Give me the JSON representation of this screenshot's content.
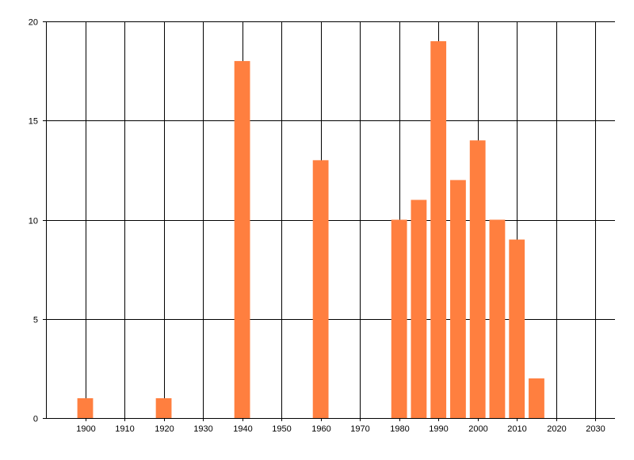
{
  "chart_data": {
    "type": "bar",
    "x": [
      1900,
      1920,
      1940,
      1960,
      1980,
      1985,
      1990,
      1995,
      2000,
      2005,
      2010,
      2015
    ],
    "values": [
      1,
      1,
      18,
      13,
      10,
      11,
      19,
      12,
      14,
      10,
      9,
      2
    ],
    "bar_width": 4,
    "title": "",
    "xlabel": "",
    "ylabel": "",
    "xlim": [
      1890,
      2035
    ],
    "ylim": [
      0,
      20
    ],
    "x_ticks": [
      1900,
      1910,
      1920,
      1930,
      1940,
      1950,
      1960,
      1970,
      1980,
      1990,
      2000,
      2010,
      2020,
      2030
    ],
    "y_ticks": [
      0,
      5,
      10,
      15,
      20
    ],
    "grid": true,
    "legend": "none",
    "colors": {
      "bar": "#ff7f3f",
      "grid": "#000000",
      "axis": "#000000"
    }
  }
}
